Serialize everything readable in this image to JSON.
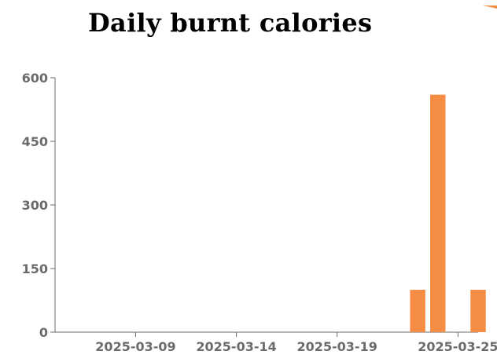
{
  "chart_data": {
    "type": "bar",
    "title": "Daily burnt calories",
    "xlabel": "",
    "ylabel": "",
    "x": [
      "2025-03-23",
      "2025-03-24",
      "2025-03-26"
    ],
    "values": [
      100,
      560,
      100
    ],
    "x_range": [
      "2025-03-05",
      "2025-03-26"
    ],
    "ylim": [
      0,
      600
    ],
    "y_ticks": [
      0,
      150,
      300,
      450,
      600
    ],
    "x_ticks": [
      "2025-03-09",
      "2025-03-14",
      "2025-03-19",
      "2025-03-25"
    ],
    "grid": false,
    "legend": "none",
    "bar_color": "#f68d45",
    "accent_color": "#f68d45"
  }
}
